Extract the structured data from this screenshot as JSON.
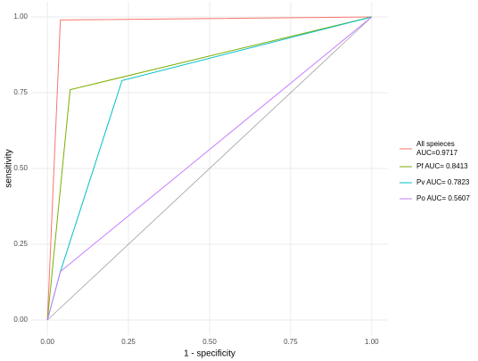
{
  "chart_data": {
    "type": "line",
    "xlabel": "1 - specificity",
    "ylabel": "sensitivity",
    "xlim": [
      -0.05,
      1.05
    ],
    "ylim": [
      -0.05,
      1.05
    ],
    "xticks": [
      {
        "value": 0,
        "label": "0.00"
      },
      {
        "value": 0.25,
        "label": "0.25"
      },
      {
        "value": 0.5,
        "label": "0.50"
      },
      {
        "value": 0.75,
        "label": "0.75"
      },
      {
        "value": 1,
        "label": "1.00"
      }
    ],
    "yticks": [
      {
        "value": 0,
        "label": "0.00"
      },
      {
        "value": 0.25,
        "label": "0.25"
      },
      {
        "value": 0.5,
        "label": "0.50"
      },
      {
        "value": 0.75,
        "label": "0.75"
      },
      {
        "value": 1,
        "label": "1.00"
      }
    ],
    "grid": true,
    "legend": "right",
    "series": [
      {
        "name": "All speieces\nAUC=0.9717",
        "color": "#F8766D",
        "x": [
          0,
          0.04,
          1
        ],
        "values": [
          0,
          0.99,
          1
        ]
      },
      {
        "name": "Pf AUC= 0.8413",
        "color": "#7CAE00",
        "x": [
          0,
          0.07,
          1
        ],
        "values": [
          0,
          0.76,
          1
        ]
      },
      {
        "name": "Pv AUC= 0.7823",
        "color": "#00BFC4",
        "x": [
          0,
          0.04,
          0.23,
          1
        ],
        "values": [
          0,
          0.16,
          0.79,
          1
        ]
      },
      {
        "name": "Po AUC= 0.5607",
        "color": "#C77CFF",
        "x": [
          0,
          0.04,
          1
        ],
        "values": [
          0,
          0.16,
          1
        ]
      }
    ]
  }
}
